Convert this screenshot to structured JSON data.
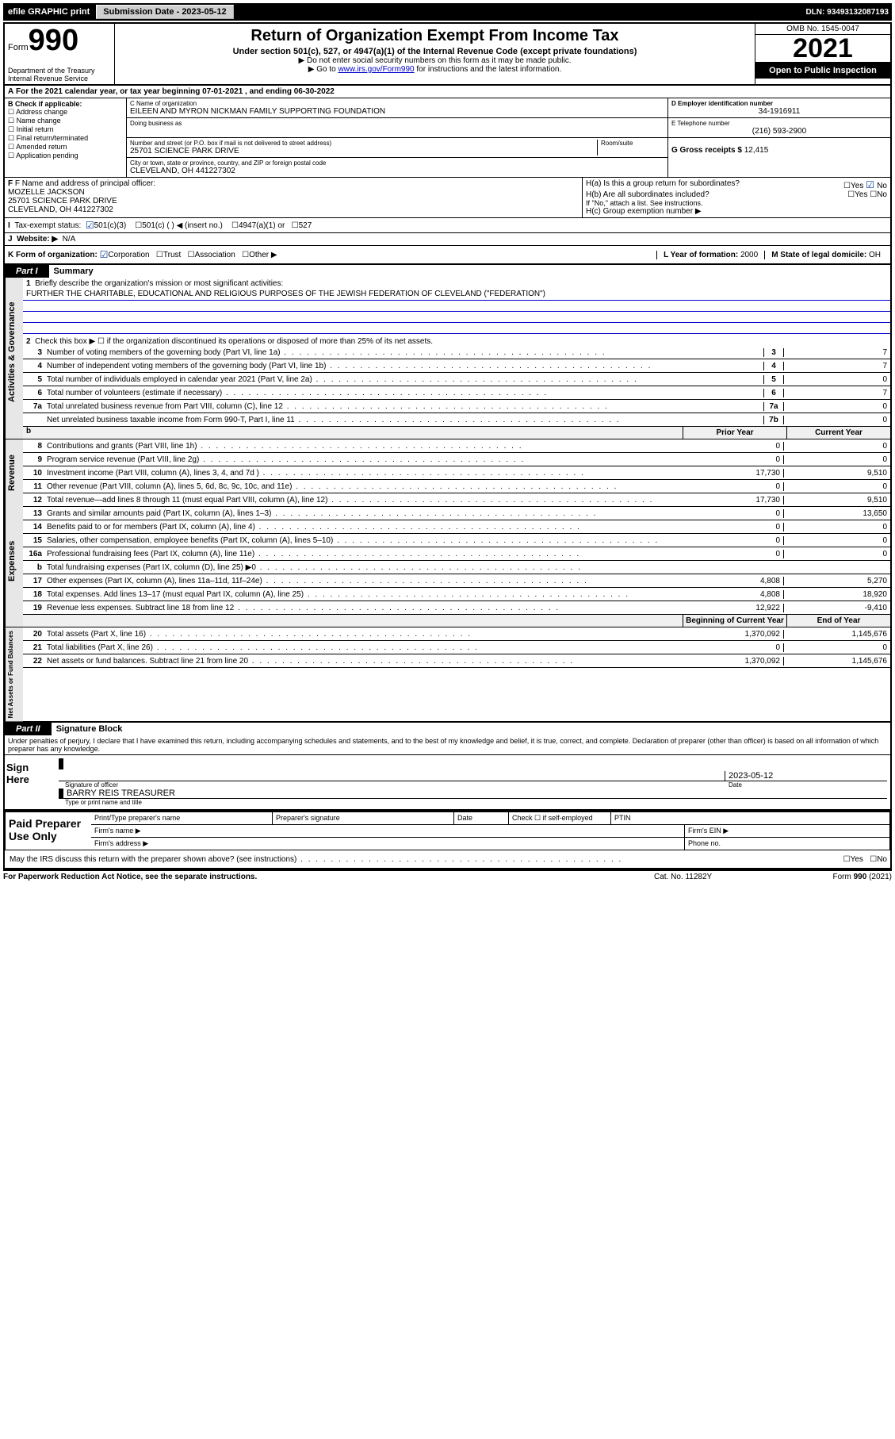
{
  "topbar": {
    "efile": "efile GRAPHIC print",
    "submission_label": "Submission Date - 2023-05-12",
    "dln": "DLN: 93493132087193"
  },
  "header": {
    "form_label": "Form",
    "form_number": "990",
    "dept": "Department of the Treasury",
    "irs": "Internal Revenue Service",
    "title": "Return of Organization Exempt From Income Tax",
    "subtitle": "Under section 501(c), 527, or 4947(a)(1) of the Internal Revenue Code (except private foundations)",
    "instr1": "▶ Do not enter social security numbers on this form as it may be made public.",
    "instr2_pre": "▶ Go to ",
    "instr2_link": "www.irs.gov/Form990",
    "instr2_post": " for instructions and the latest information.",
    "omb": "OMB No. 1545-0047",
    "year": "2021",
    "open": "Open to Public Inspection"
  },
  "section_a": {
    "a_text": "For the 2021 calendar year, or tax year beginning 07-01-2021   , and ending 06-30-2022",
    "b_label": "B Check if applicable:",
    "b_items": [
      "Address change",
      "Name change",
      "Initial return",
      "Final return/terminated",
      "Amended return",
      "Application pending"
    ],
    "c_label": "C Name of organization",
    "c_name": "EILEEN AND MYRON NICKMAN FAMILY SUPPORTING FOUNDATION",
    "dba_label": "Doing business as",
    "addr_label": "Number and street (or P.O. box if mail is not delivered to street address)",
    "room_label": "Room/suite",
    "addr": "25701 SCIENCE PARK DRIVE",
    "city_label": "City or town, state or province, country, and ZIP or foreign postal code",
    "city": "CLEVELAND, OH  441227302",
    "d_label": "D Employer identification number",
    "d_val": "34-1916911",
    "e_label": "E Telephone number",
    "e_val": "(216) 593-2900",
    "g_label": "G Gross receipts $",
    "g_val": "12,415",
    "f_label": "F Name and address of principal officer:",
    "f_name": "MOZELLE JACKSON",
    "f_addr1": "25701 SCIENCE PARK DRIVE",
    "f_addr2": "CLEVELAND, OH  441227302",
    "ha_label": "H(a)  Is this a group return for subordinates?",
    "ha_yes": "Yes",
    "ha_no": "No",
    "hb_label": "H(b)  Are all subordinates included?",
    "hb_note": "If \"No,\" attach a list. See instructions.",
    "hc_label": "H(c)  Group exemption number ▶",
    "i_label": "Tax-exempt status:",
    "i_501c3": "501(c)(3)",
    "i_501c": "501(c) (  ) ◀ (insert no.)",
    "i_4947": "4947(a)(1) or",
    "i_527": "527",
    "j_label": "Website: ▶",
    "j_val": "N/A",
    "k_label": "K Form of organization:",
    "k_corp": "Corporation",
    "k_trust": "Trust",
    "k_assoc": "Association",
    "k_other": "Other ▶",
    "l_label": "L Year of formation:",
    "l_val": "2000",
    "m_label": "M State of legal domicile:",
    "m_val": "OH"
  },
  "part1": {
    "tab": "Part I",
    "title": "Summary",
    "line1_label": "Briefly describe the organization's mission or most significant activities:",
    "line1_text": "FURTHER THE CHARITABLE, EDUCATIONAL AND RELIGIOUS PURPOSES OF THE JEWISH FEDERATION OF CLEVELAND (\"FEDERATION\")",
    "line2": "Check this box ▶ ☐  if the organization discontinued its operations or disposed of more than 25% of its net assets.",
    "governance": [
      {
        "n": "3",
        "t": "Number of voting members of the governing body (Part VI, line 1a)",
        "c": "3",
        "v": "7"
      },
      {
        "n": "4",
        "t": "Number of independent voting members of the governing body (Part VI, line 1b)",
        "c": "4",
        "v": "7"
      },
      {
        "n": "5",
        "t": "Total number of individuals employed in calendar year 2021 (Part V, line 2a)",
        "c": "5",
        "v": "0"
      },
      {
        "n": "6",
        "t": "Total number of volunteers (estimate if necessary)",
        "c": "6",
        "v": "7"
      },
      {
        "n": "7a",
        "t": "Total unrelated business revenue from Part VIII, column (C), line 12",
        "c": "7a",
        "v": "0"
      },
      {
        "n": "",
        "t": "Net unrelated business taxable income from Form 990-T, Part I, line 11",
        "c": "7b",
        "v": "0"
      }
    ],
    "col_headers": {
      "prior": "Prior Year",
      "current": "Current Year"
    },
    "revenue": [
      {
        "n": "8",
        "t": "Contributions and grants (Part VIII, line 1h)",
        "p": "0",
        "c": "0"
      },
      {
        "n": "9",
        "t": "Program service revenue (Part VIII, line 2g)",
        "p": "0",
        "c": "0"
      },
      {
        "n": "10",
        "t": "Investment income (Part VIII, column (A), lines 3, 4, and 7d )",
        "p": "17,730",
        "c": "9,510"
      },
      {
        "n": "11",
        "t": "Other revenue (Part VIII, column (A), lines 5, 6d, 8c, 9c, 10c, and 11e)",
        "p": "0",
        "c": "0"
      },
      {
        "n": "12",
        "t": "Total revenue—add lines 8 through 11 (must equal Part VIII, column (A), line 12)",
        "p": "17,730",
        "c": "9,510"
      }
    ],
    "expenses": [
      {
        "n": "13",
        "t": "Grants and similar amounts paid (Part IX, column (A), lines 1–3)",
        "p": "0",
        "c": "13,650"
      },
      {
        "n": "14",
        "t": "Benefits paid to or for members (Part IX, column (A), line 4)",
        "p": "0",
        "c": "0"
      },
      {
        "n": "15",
        "t": "Salaries, other compensation, employee benefits (Part IX, column (A), lines 5–10)",
        "p": "0",
        "c": "0"
      },
      {
        "n": "16a",
        "t": "Professional fundraising fees (Part IX, column (A), line 11e)",
        "p": "0",
        "c": "0"
      },
      {
        "n": "b",
        "t": "Total fundraising expenses (Part IX, column (D), line 25) ▶0",
        "p": "",
        "c": "",
        "shade": true
      },
      {
        "n": "17",
        "t": "Other expenses (Part IX, column (A), lines 11a–11d, 11f–24e)",
        "p": "4,808",
        "c": "5,270"
      },
      {
        "n": "18",
        "t": "Total expenses. Add lines 13–17 (must equal Part IX, column (A), line 25)",
        "p": "4,808",
        "c": "18,920"
      },
      {
        "n": "19",
        "t": "Revenue less expenses. Subtract line 18 from line 12",
        "p": "12,922",
        "c": "-9,410"
      }
    ],
    "net_headers": {
      "begin": "Beginning of Current Year",
      "end": "End of Year"
    },
    "net": [
      {
        "n": "20",
        "t": "Total assets (Part X, line 16)",
        "p": "1,370,092",
        "c": "1,145,676"
      },
      {
        "n": "21",
        "t": "Total liabilities (Part X, line 26)",
        "p": "0",
        "c": "0"
      },
      {
        "n": "22",
        "t": "Net assets or fund balances. Subtract line 21 from line 20",
        "p": "1,370,092",
        "c": "1,145,676"
      }
    ],
    "side_labels": {
      "gov": "Activities & Governance",
      "rev": "Revenue",
      "exp": "Expenses",
      "net": "Net Assets or Fund Balances"
    }
  },
  "part2": {
    "tab": "Part II",
    "title": "Signature Block",
    "penalty": "Under penalties of perjury, I declare that I have examined this return, including accompanying schedules and statements, and to the best of my knowledge and belief, it is true, correct, and complete. Declaration of preparer (other than officer) is based on all information of which preparer has any knowledge.",
    "sign_here": "Sign Here",
    "sig_officer_lbl": "Signature of officer",
    "date_lbl": "Date",
    "date_val": "2023-05-12",
    "name_title": "BARRY REIS  TREASURER",
    "name_lbl": "Type or print name and title",
    "paid": "Paid Preparer Use Only",
    "p_name": "Print/Type preparer's name",
    "p_sig": "Preparer's signature",
    "p_date": "Date",
    "p_check": "Check ☐ if self-employed",
    "p_ptin": "PTIN",
    "p_firm": "Firm's name   ▶",
    "p_ein": "Firm's EIN ▶",
    "p_addr": "Firm's address ▶",
    "p_phone": "Phone no.",
    "may_irs": "May the IRS discuss this return with the preparer shown above? (see instructions)",
    "yes": "Yes",
    "no": "No"
  },
  "footer": {
    "left": "For Paperwork Reduction Act Notice, see the separate instructions.",
    "center": "Cat. No. 11282Y",
    "right": "Form 990 (2021)"
  }
}
